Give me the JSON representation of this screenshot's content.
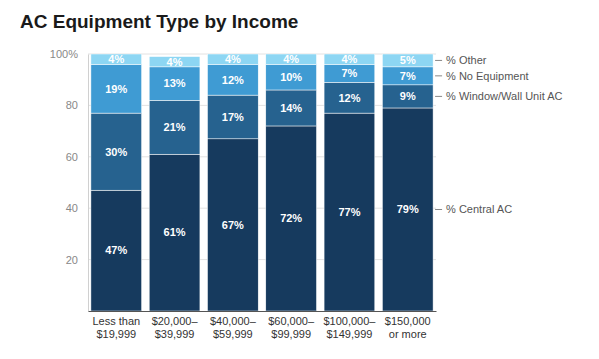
{
  "chart_data": {
    "type": "bar",
    "title": "AC Equipment Type by Income",
    "categories": [
      "Less than\n$19,999",
      "$20,000–\n$39,999",
      "$40,000–\n$59,999",
      "$60,000–\n$99,999",
      "$100,000–\n$149,999",
      "$150,000\nor more"
    ],
    "series": [
      {
        "name": "% Central AC",
        "color": "#163a5e",
        "values": [
          47,
          61,
          67,
          72,
          77,
          79
        ],
        "value_labels": [
          "47%",
          "61%",
          "67%",
          "72%",
          "77%",
          "79%"
        ]
      },
      {
        "name": "% Window/Wall Unit AC",
        "color": "#26628f",
        "values": [
          30,
          21,
          17,
          14,
          12,
          9
        ],
        "value_labels": [
          "30%",
          "21%",
          "17%",
          "14%",
          "12%",
          "9%"
        ]
      },
      {
        "name": "% No Equipment",
        "color": "#3f9bd3",
        "values": [
          19,
          13,
          12,
          10,
          7,
          7
        ],
        "value_labels": [
          "19%",
          "13%",
          "12%",
          "10%",
          "7%",
          "7%"
        ]
      },
      {
        "name": "% Other",
        "color": "#8dd6f3",
        "values": [
          4,
          4,
          4,
          4,
          4,
          5
        ],
        "value_labels": [
          "4%",
          "4%",
          "4%",
          "4%",
          "4%",
          "5%"
        ]
      }
    ],
    "stacked": true,
    "data_labels": true,
    "grid": true,
    "ylim": [
      0,
      100
    ],
    "yticks": [
      20,
      40,
      60,
      80,
      {
        "value": 100,
        "label": "100%"
      }
    ]
  }
}
